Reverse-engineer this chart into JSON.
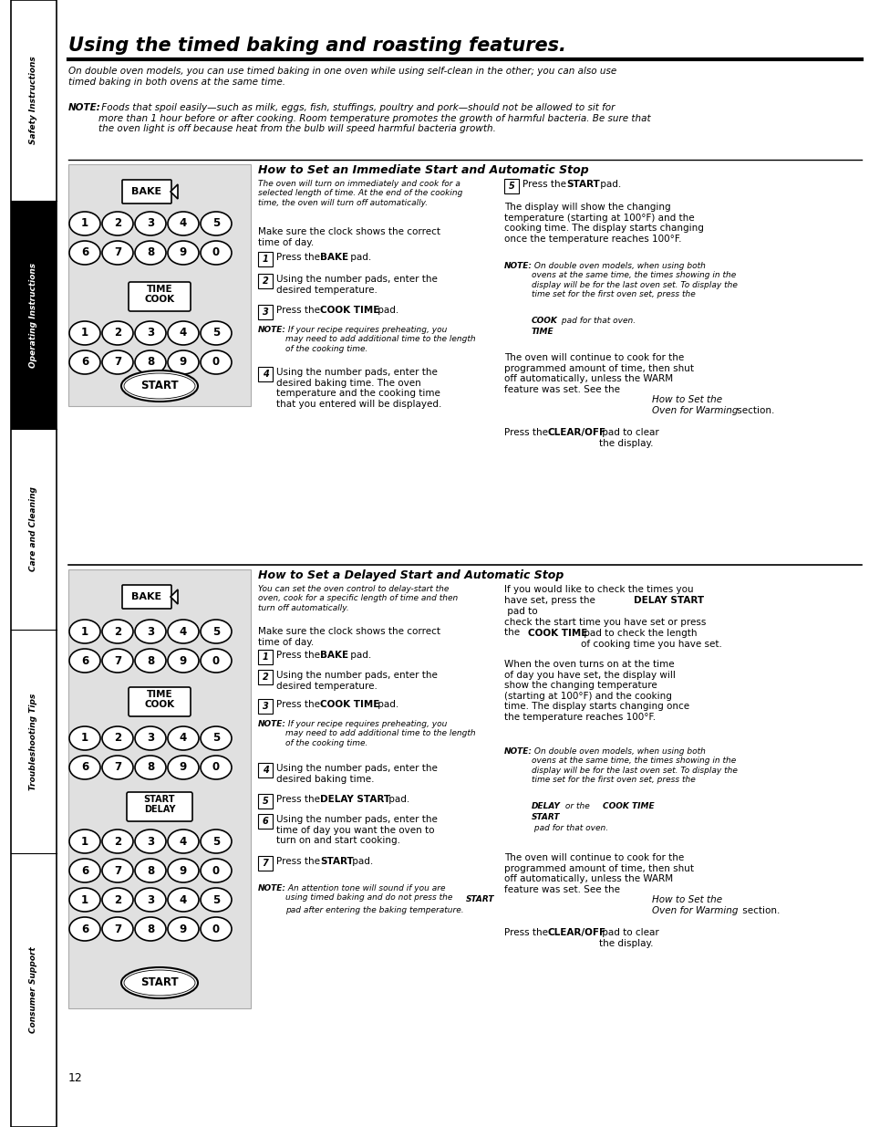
{
  "title": "Using the timed baking and roasting features.",
  "sidebar_sections": [
    {
      "label": "Safety Instructions",
      "bg": "#ffffff",
      "fg": "#000000"
    },
    {
      "label": "Operating Instructions",
      "bg": "#000000",
      "fg": "#ffffff"
    },
    {
      "label": "Care and Cleaning",
      "bg": "#ffffff",
      "fg": "#000000"
    },
    {
      "label": "Troubleshooting Tips",
      "bg": "#ffffff",
      "fg": "#000000"
    },
    {
      "label": "Consumer Support",
      "bg": "#ffffff",
      "fg": "#000000"
    }
  ],
  "page_number": "12"
}
